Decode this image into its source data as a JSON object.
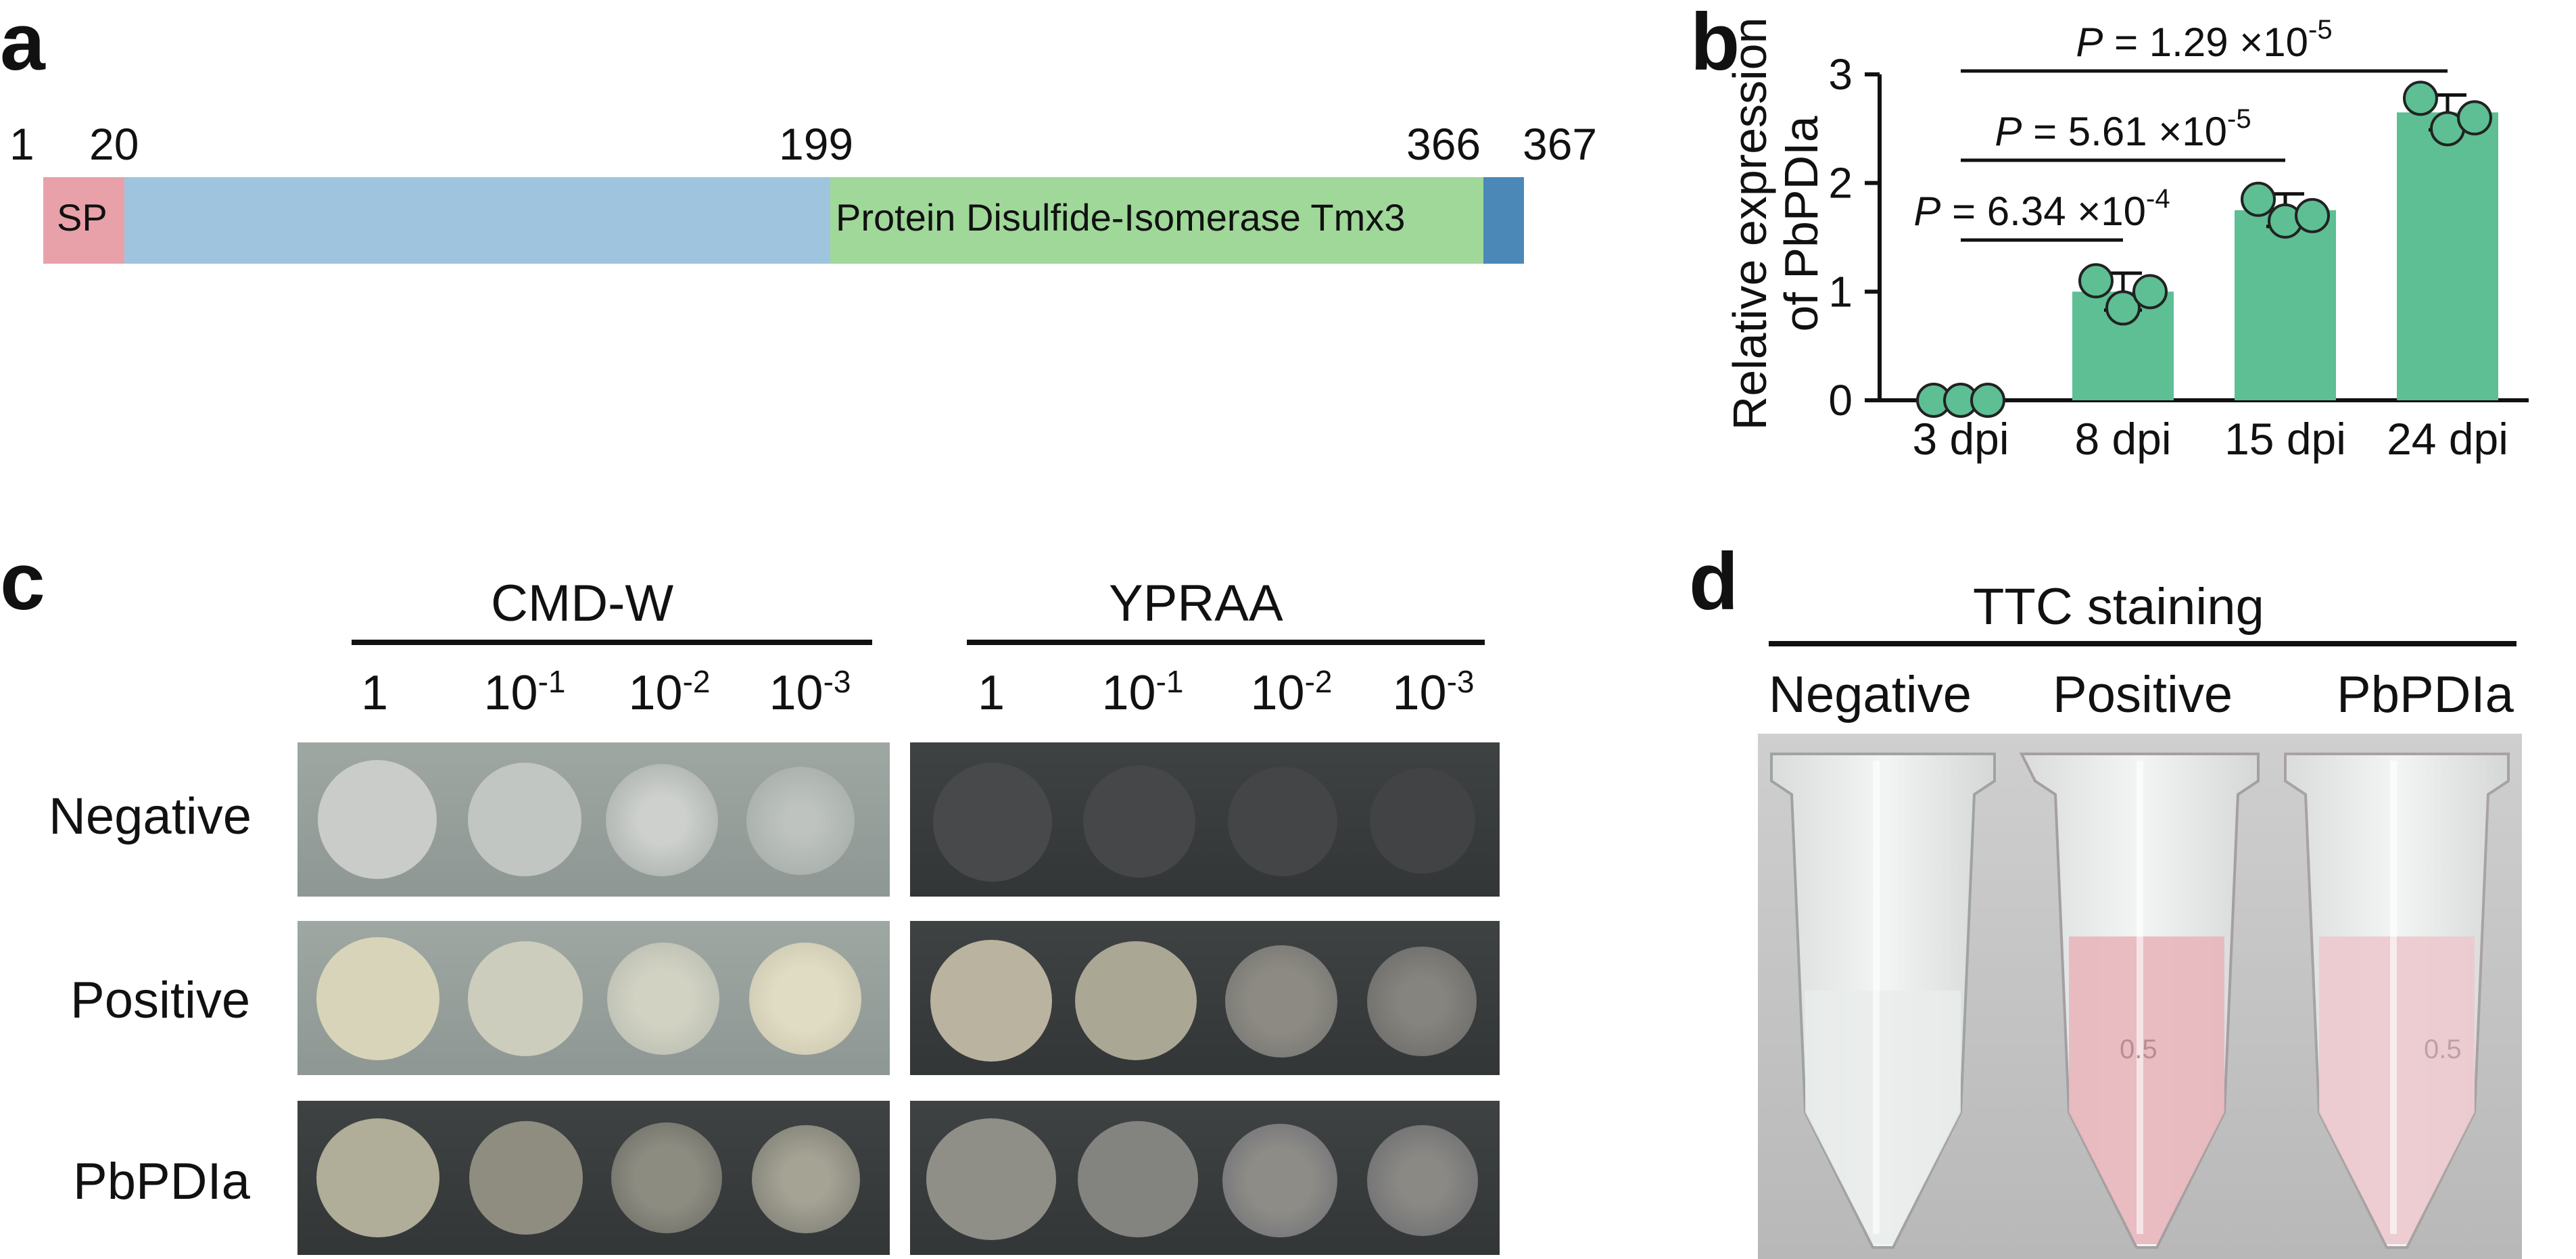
{
  "panel_a": {
    "letter": "a",
    "positions": [
      "1",
      "20",
      "199",
      "366",
      "367"
    ],
    "segments": [
      {
        "label": "SP",
        "color": "#e8a1a8"
      },
      {
        "label": "",
        "color": "#9fc5de"
      },
      {
        "label": "Protein Disulfide-Isomerase Tmx3",
        "color": "#9fd899"
      },
      {
        "label": "",
        "color": "#4b88b8"
      }
    ]
  },
  "panel_b": {
    "letter": "b",
    "ylabel_line1": "Relative expression",
    "ylabel_line2": "of PbPDIa",
    "chart_data": {
      "type": "bar",
      "categories": [
        "3 dpi",
        "8 dpi",
        "15 dpi",
        "24 dpi"
      ],
      "values": [
        0,
        1.0,
        1.75,
        2.65
      ],
      "error": [
        0,
        0.17,
        0.15,
        0.16
      ],
      "points": [
        [
          0,
          0,
          0
        ],
        [
          1.1,
          0.85,
          1.0
        ],
        [
          1.85,
          1.65,
          1.7
        ],
        [
          2.78,
          2.5,
          2.6
        ]
      ],
      "ylim": [
        0,
        3
      ],
      "yticks": [
        "0",
        "1",
        "2",
        "3"
      ],
      "bar_color": "#5dbf93",
      "point_color": "#5dbf93",
      "significance": [
        {
          "pair": [
            0,
            1
          ],
          "label": "P = 6.34 ×10",
          "exp": "-4"
        },
        {
          "pair": [
            0,
            2
          ],
          "label": "P = 5.61 ×10",
          "exp": "-5"
        },
        {
          "pair": [
            0,
            3
          ],
          "label": "P = 1.29 ×10",
          "exp": "-5"
        }
      ]
    }
  },
  "panel_c": {
    "letter": "c",
    "media": [
      "CMD-W",
      "YPRAA"
    ],
    "dilutions": [
      {
        "base": "1",
        "exp": ""
      },
      {
        "base": "10",
        "exp": "-1"
      },
      {
        "base": "10",
        "exp": "-2"
      },
      {
        "base": "10",
        "exp": "-3"
      }
    ],
    "rows": [
      "Negative",
      "Positive",
      "PbPDIa"
    ]
  },
  "panel_d": {
    "letter": "d",
    "title": "TTC staining",
    "tubes": [
      {
        "label": "Negative",
        "liquid": "#e9eceb"
      },
      {
        "label": "Positive",
        "liquid": "#e8b6bd"
      },
      {
        "label": "PbPDIa",
        "liquid": "#ecc9cd"
      }
    ],
    "tube_mark": "0.5"
  }
}
